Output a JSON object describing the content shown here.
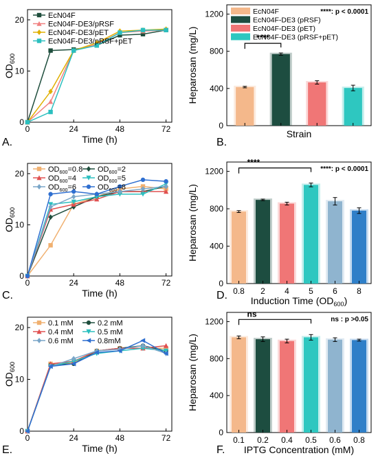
{
  "panels": [
    {
      "letter": "A.",
      "chart_data": {
        "type": "line",
        "xlabel": "Time (h)",
        "ylabel_main": "OD",
        "ylabel_sub": "600",
        "xlim": [
          0,
          75
        ],
        "ylim": [
          0,
          22
        ],
        "xticks": [
          0,
          24,
          48,
          72
        ],
        "yticks": [
          0,
          10,
          20
        ],
        "legend_placement": "top-left",
        "x": [
          0,
          12,
          24,
          36,
          48,
          60,
          72
        ],
        "series": [
          {
            "name": "EcN04F",
            "color": "#1f4e3d",
            "marker": "square",
            "values": [
              0,
              14.0,
              14.2,
              15.0,
              17.0,
              17.2,
              18.0
            ]
          },
          {
            "name": "EcN04F-DE3/pRSF",
            "color": "#f08080",
            "marker": "triangle",
            "values": [
              0,
              4.0,
              14.0,
              15.2,
              17.5,
              17.8,
              18.0
            ]
          },
          {
            "name": "EcN04F-DE3/pET",
            "color": "#e0b000",
            "marker": "diamond",
            "values": [
              0,
              6.0,
              14.0,
              15.5,
              17.8,
              18.0,
              18.2
            ]
          },
          {
            "name": "EcN04F-DE3/pRSF+pET",
            "color": "#2bbfbf",
            "marker": "square",
            "values": [
              0,
              2.0,
              14.0,
              15.0,
              17.5,
              18.0,
              18.0
            ]
          }
        ]
      }
    },
    {
      "letter": "B.",
      "chart_data": {
        "type": "bar",
        "xlabel": "Strain",
        "ylabel": "Heparosan (mg/L)",
        "ylim": [
          0,
          1300
        ],
        "yticks": [
          0,
          400,
          800,
          1200
        ],
        "categories": [
          "",
          "",
          "",
          ""
        ],
        "values": [
          415,
          770,
          465,
          405
        ],
        "errors": [
          8,
          12,
          18,
          30
        ],
        "colors": [
          "#f4b88b",
          "#1d4d40",
          "#f07676",
          "#2ec7c0"
        ],
        "legend": [
          "EcN04F",
          "EcN04F-DE3 (pRSF)",
          "EcN04F-DE3 (pET)",
          "EcN04F-DE3 (pRSF+pET)"
        ],
        "annotation": "****: p < 0.0001",
        "significance": {
          "label": "****",
          "from": 0,
          "to": 1
        }
      }
    },
    {
      "letter": "C.",
      "chart_data": {
        "type": "line",
        "xlabel": "Time (h)",
        "ylabel_main": "OD",
        "ylabel_sub": "600",
        "xlim": [
          0,
          75
        ],
        "ylim": [
          0,
          22
        ],
        "xticks": [
          0,
          24,
          48,
          72
        ],
        "yticks": [
          0,
          10,
          20
        ],
        "legend_placement": "top-left",
        "x": [
          0,
          12,
          24,
          36,
          48,
          60,
          72
        ],
        "series": [
          {
            "name_main": "OD",
            "name_sub": "600",
            "name_suffix": "=0.8",
            "color": "#f0b070",
            "marker": "square",
            "values": [
              0,
              6.0,
              14.0,
              15.5,
              17.0,
              17.5,
              17.0
            ]
          },
          {
            "name_main": "OD",
            "name_sub": "600",
            "name_suffix": "=2",
            "color": "#1f4e3d",
            "marker": "diamond",
            "values": [
              0,
              11.5,
              13.5,
              15.5,
              16.5,
              16.5,
              17.5
            ]
          },
          {
            "name_main": "OD",
            "name_sub": "600",
            "name_suffix": "=4",
            "color": "#e05050",
            "marker": "triangle",
            "values": [
              0,
              13.0,
              14.0,
              15.0,
              16.5,
              16.5,
              16.5
            ]
          },
          {
            "name_main": "OD",
            "name_sub": "600",
            "name_suffix": "=5",
            "color": "#2bbfbf",
            "marker": "triangle-down",
            "values": [
              0,
              14.0,
              14.5,
              15.5,
              16.0,
              16.0,
              18.0
            ]
          },
          {
            "name_main": "OD",
            "name_sub": "600",
            "name_suffix": "=6",
            "color": "#7aa6c8",
            "marker": "diamond",
            "values": [
              0,
              13.5,
              15.5,
              16.0,
              16.5,
              17.0,
              17.5
            ]
          },
          {
            "name_main": "OD",
            "name_sub": "600",
            "name_suffix": "=8",
            "color": "#2f6fd0",
            "marker": "circle",
            "values": [
              0,
              16.0,
              16.5,
              16.0,
              17.5,
              18.8,
              18.5
            ]
          }
        ]
      }
    },
    {
      "letter": "D.",
      "chart_data": {
        "type": "bar",
        "xlabel_main": "Induction Time (OD",
        "xlabel_sub": "600",
        "xlabel_suffix": ")",
        "ylabel": "Heparosan (mg/L)",
        "ylim": [
          0,
          1300
        ],
        "yticks": [
          0,
          400,
          800,
          1200
        ],
        "categories": [
          "0.8",
          "2",
          "4",
          "5",
          "6",
          "8"
        ],
        "values": [
          770,
          895,
          855,
          1055,
          880,
          780
        ],
        "errors": [
          10,
          8,
          15,
          20,
          40,
          30
        ],
        "colors": [
          "#f4b88b",
          "#1d4d40",
          "#f07676",
          "#2ec7c0",
          "#8fb4cf",
          "#2f7fc8"
        ],
        "annotation": "****: p < 0.0001",
        "significance": {
          "label": "****",
          "from": 0,
          "to": 3
        }
      }
    },
    {
      "letter": "E.",
      "chart_data": {
        "type": "line",
        "xlabel": "Time (h)",
        "ylabel_main": "OD",
        "ylabel_sub": "600",
        "xlim": [
          0,
          75
        ],
        "ylim": [
          0,
          22
        ],
        "xticks": [
          0,
          24,
          48,
          72
        ],
        "yticks": [
          0,
          10,
          20
        ],
        "legend_placement": "top-left",
        "x": [
          0,
          12,
          24,
          36,
          48,
          60,
          72
        ],
        "series": [
          {
            "name": "0.1 mM",
            "color": "#f0b070",
            "marker": "square",
            "values": [
              0,
              13.0,
              13.2,
              15.5,
              16.0,
              16.0,
              16.0
            ]
          },
          {
            "name": "0.2 mM",
            "color": "#1f4e3d",
            "marker": "circle",
            "values": [
              0,
              12.8,
              13.0,
              15.5,
              16.0,
              16.5,
              15.5
            ]
          },
          {
            "name": "0.4 mM",
            "color": "#e05050",
            "marker": "triangle",
            "values": [
              0,
              13.0,
              13.5,
              15.5,
              16.0,
              16.0,
              16.5
            ]
          },
          {
            "name": "0.5 mM",
            "color": "#2bbfbf",
            "marker": "triangle-down",
            "values": [
              0,
              12.5,
              13.5,
              15.0,
              15.5,
              16.0,
              15.5
            ]
          },
          {
            "name": "0.6 mM",
            "color": "#7aa6c8",
            "marker": "diamond",
            "values": [
              0,
              12.5,
              14.0,
              15.5,
              15.8,
              16.5,
              15.0
            ]
          },
          {
            "name": "0.8mM",
            "color": "#2f6fd0",
            "marker": "triangle-left",
            "values": [
              0,
              12.5,
              13.0,
              15.2,
              15.5,
              17.5,
              15.0
            ]
          }
        ]
      }
    },
    {
      "letter": "F.",
      "chart_data": {
        "type": "bar",
        "xlabel": "IPTG Concentration (mM)",
        "ylabel": "Heparosan (mg/L)",
        "ylim": [
          0,
          1300
        ],
        "yticks": [
          0,
          400,
          800,
          1200
        ],
        "categories": [
          "0.1",
          "0.2",
          "0.4",
          "0.5",
          "0.6",
          "0.8"
        ],
        "values": [
          1030,
          1010,
          990,
          1030,
          1005,
          1000
        ],
        "errors": [
          15,
          25,
          20,
          30,
          20,
          10
        ],
        "colors": [
          "#f4b88b",
          "#1d4d40",
          "#f07676",
          "#2ec7c0",
          "#8fb4cf",
          "#2f7fc8"
        ],
        "annotation": "ns : p >0.05",
        "significance": {
          "label": "ns",
          "from": 0,
          "to": 3
        }
      }
    }
  ]
}
